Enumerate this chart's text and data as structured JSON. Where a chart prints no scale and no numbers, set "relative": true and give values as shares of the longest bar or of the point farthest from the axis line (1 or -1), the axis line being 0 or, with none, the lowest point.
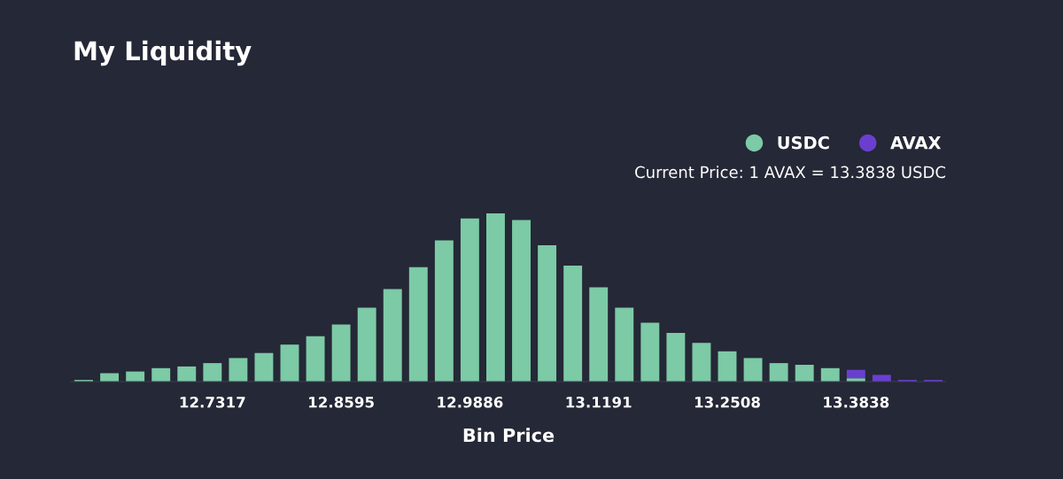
{
  "chart_data": {
    "type": "bar",
    "title": "My Liquidity",
    "xlabel": "Bin Price",
    "relative": true,
    "stacked": true,
    "legend": "top right",
    "grid": false,
    "annotations": [
      "Current Price: 1 AVAX = 13.3838 USDC"
    ],
    "categories": [
      null,
      null,
      null,
      null,
      null,
      "12.7317",
      null,
      null,
      null,
      null,
      "12.8595",
      null,
      null,
      null,
      null,
      "12.9886",
      null,
      null,
      null,
      null,
      "13.1191",
      null,
      null,
      null,
      null,
      "13.2508",
      null,
      null,
      null,
      null,
      "13.3838",
      null,
      null,
      null
    ],
    "series": [
      {
        "name": "USDC",
        "color": "#7ccaa6",
        "values": [
          0.01,
          0.05,
          0.06,
          0.08,
          0.09,
          0.11,
          0.14,
          0.17,
          0.22,
          0.27,
          0.34,
          0.44,
          0.55,
          0.68,
          0.84,
          0.97,
          1,
          0.96,
          0.81,
          0.69,
          0.56,
          0.44,
          0.35,
          0.29,
          0.23,
          0.18,
          0.14,
          0.11,
          0.1,
          0.08,
          0.02,
          null,
          null,
          null
        ]
      },
      {
        "name": "AVAX",
        "color": "#6a3fd0",
        "values": [
          null,
          null,
          null,
          null,
          null,
          null,
          null,
          null,
          null,
          null,
          null,
          null,
          null,
          null,
          null,
          null,
          null,
          null,
          null,
          null,
          null,
          null,
          null,
          null,
          null,
          null,
          null,
          null,
          null,
          null,
          0.05,
          0.04,
          0.01,
          0.01
        ]
      }
    ]
  }
}
